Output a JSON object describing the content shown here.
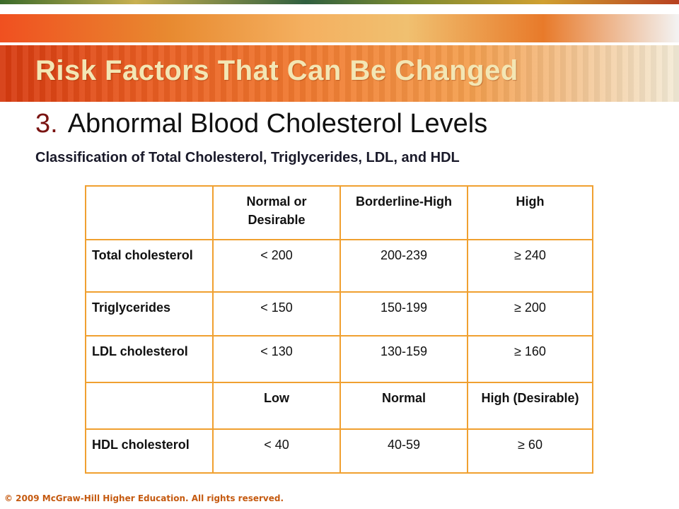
{
  "slide": {
    "title": "Risk Factors That Can Be Changed",
    "subtitle_number": "3.",
    "subtitle_text": "Abnormal Blood Cholesterol Levels",
    "caption": "Classification of Total Cholesterol, Triglycerides, LDL, and HDL",
    "footer": "© 2009 McGraw-Hill Higher Education. All rights reserved."
  },
  "table": {
    "header1": [
      "",
      "Normal or Desirable",
      "Borderline-High",
      "High"
    ],
    "rows1": [
      [
        "Total cholesterol",
        "< 200",
        "200-239",
        "≥ 240"
      ],
      [
        "Triglycerides",
        "< 150",
        "150-199",
        "≥ 200"
      ],
      [
        "LDL cholesterol",
        "< 130",
        "130-159",
        "≥ 160"
      ]
    ],
    "header2": [
      "",
      "Low",
      "Normal",
      "High (Desirable)"
    ],
    "rows2": [
      [
        "HDL cholesterol",
        "< 40",
        "40-59",
        "≥ 60"
      ]
    ]
  },
  "colors": {
    "table_border": "#f0a030",
    "title_text": "#f3e6b4",
    "subtitle_number": "#7a1412",
    "footer_text": "#c55a10"
  }
}
